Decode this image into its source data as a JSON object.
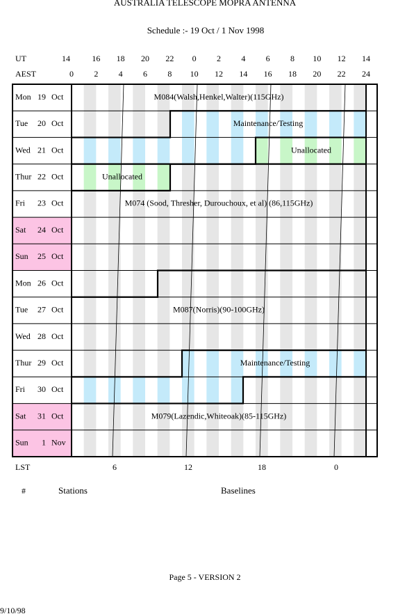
{
  "header": {
    "title": "AUSTRALIA TELESCOPE MOPRA ANTENNA",
    "subtitle": "Schedule :- 19 Oct / 1 Nov 1998"
  },
  "time_axis": {
    "ut_label": "UT",
    "ut": [
      "14",
      "16",
      "18",
      "20",
      "22",
      "0",
      "2",
      "4",
      "6",
      "8",
      "10",
      "12",
      "14"
    ],
    "aest_label": "AEST",
    "aest": [
      "0",
      "2",
      "4",
      "6",
      "8",
      "10",
      "12",
      "14",
      "16",
      "18",
      "20",
      "22",
      "24"
    ]
  },
  "rows": [
    {
      "day": "Mon",
      "date": "19",
      "month": "Oct"
    },
    {
      "day": "Tue",
      "date": "20",
      "month": "Oct"
    },
    {
      "day": "Wed",
      "date": "21",
      "month": "Oct"
    },
    {
      "day": "Thur",
      "date": "22",
      "month": "Oct"
    },
    {
      "day": "Fri",
      "date": "23",
      "month": "Oct"
    },
    {
      "day": "Sat",
      "date": "24",
      "month": "Oct",
      "color": "#fcc4e4"
    },
    {
      "day": "Sun",
      "date": "25",
      "month": "Oct",
      "color": "#fcc4e4"
    },
    {
      "day": "Mon",
      "date": "26",
      "month": "Oct"
    },
    {
      "day": "Tue",
      "date": "27",
      "month": "Oct"
    },
    {
      "day": "Wed",
      "date": "28",
      "month": "Oct"
    },
    {
      "day": "Thur",
      "date": "29",
      "month": "Oct"
    },
    {
      "day": "Fri",
      "date": "30",
      "month": "Oct"
    },
    {
      "day": "Sat",
      "date": "31",
      "month": "Oct",
      "color": "#fcc4e4"
    },
    {
      "day": "Sun",
      "date": "1",
      "month": "Nov",
      "color": "#fcc4e4"
    }
  ],
  "bookings": [
    {
      "label": "M084(Walsh,Henkel,Walter)(115GHz)"
    },
    {
      "label": "Maintenance/Testing"
    },
    {
      "label": "Unallocated"
    },
    {
      "label": "Unallocated"
    },
    {
      "label": "M074 (Sood, Thresher, Durouchoux, et al) (86,115GHz)"
    },
    {
      "label": "M087(Norris)(90-100GHz)"
    },
    {
      "label": "Maintenance/Testing"
    },
    {
      "label": "M079(Lazendic,Whiteoak)(85-115GHz)"
    }
  ],
  "lst": {
    "label": "LST",
    "ticks": [
      "6",
      "12",
      "18",
      "0"
    ]
  },
  "footer": {
    "number": "#",
    "stations": "Stations",
    "baselines": "Baselines",
    "page": "Page 5 - VERSION 2",
    "date": "9/10/98"
  }
}
